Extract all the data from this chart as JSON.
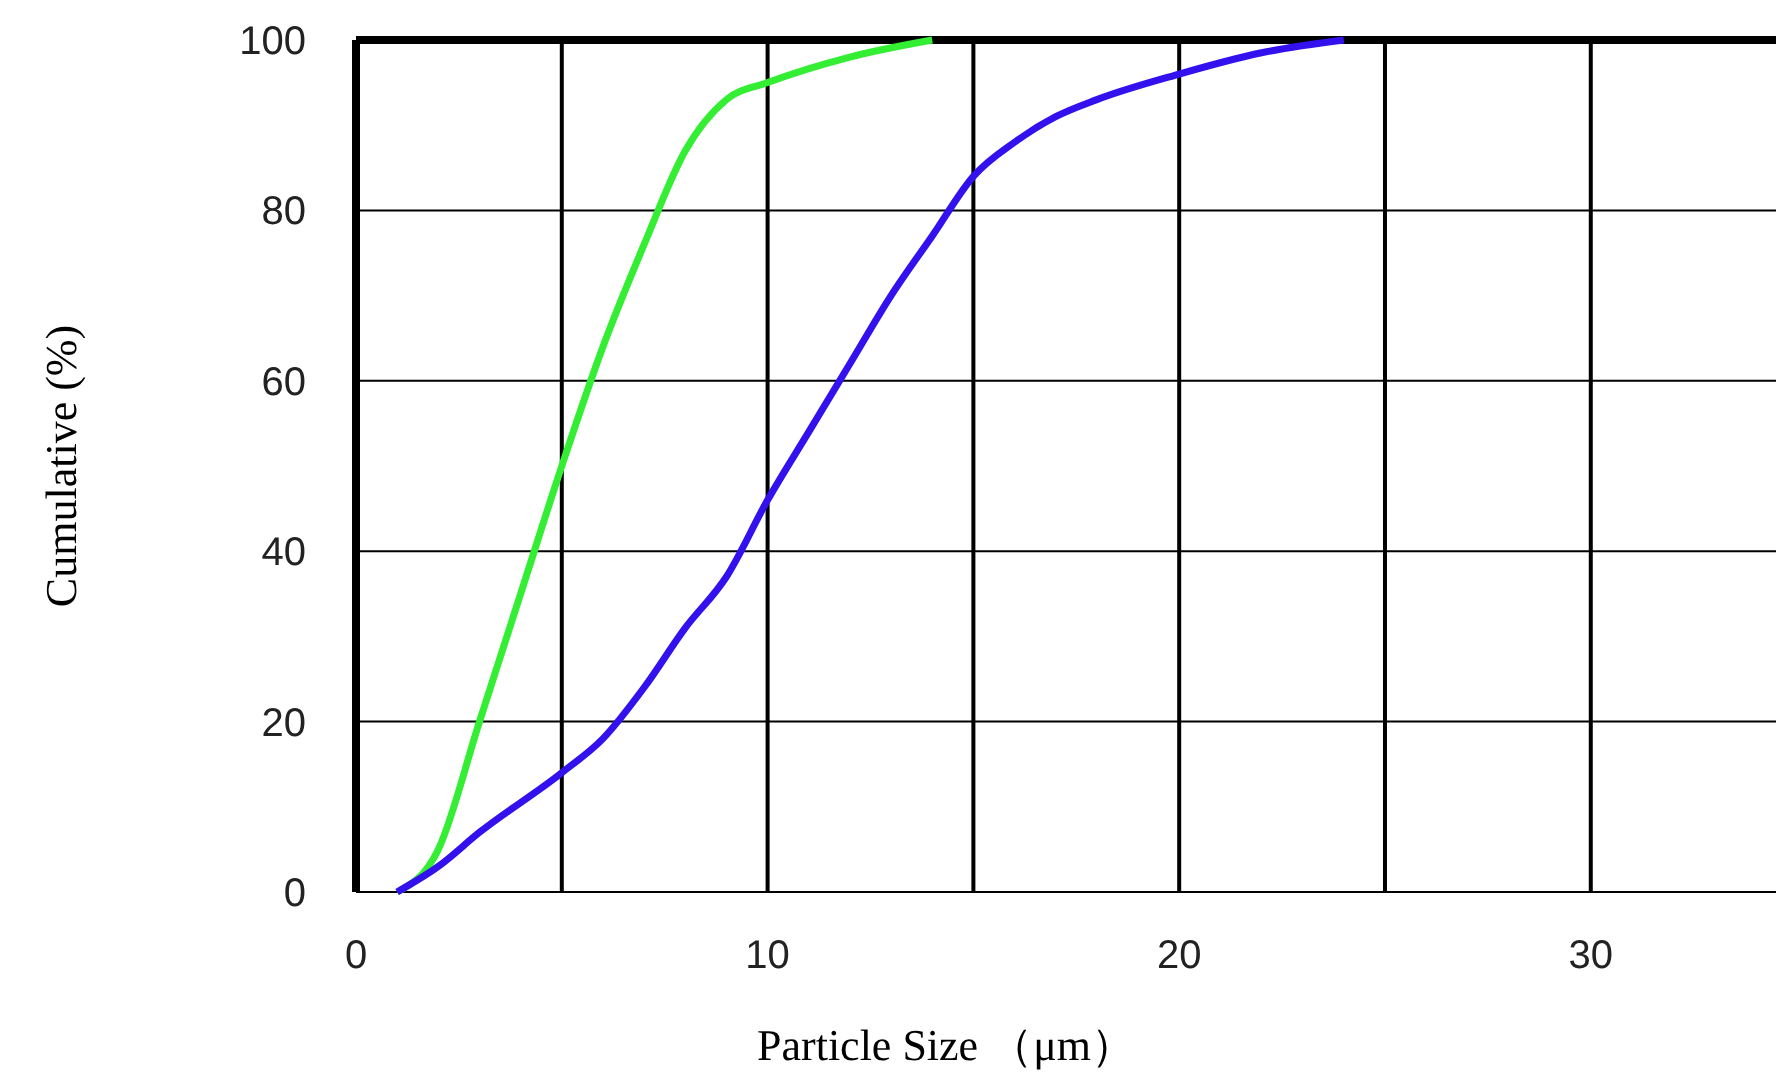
{
  "chart_data": {
    "type": "line",
    "xlabel": "Particle Size （μm）",
    "ylabel": "Cumulative (%)",
    "xlim": [
      0,
      34.5
    ],
    "ylim": [
      0,
      100
    ],
    "xticks": [
      0,
      {
        "value": 5,
        "label": null
      },
      10,
      {
        "value": 15,
        "label": null
      },
      20,
      {
        "value": 25,
        "label": null
      },
      30
    ],
    "yticks": [
      0,
      20,
      40,
      60,
      80,
      100
    ],
    "grid": true,
    "marker": "none",
    "line_style": "solid",
    "series": [
      {
        "color": "#33ee33",
        "x": [
          1,
          2,
          3,
          4,
          5,
          6,
          7,
          8,
          9,
          10,
          12,
          14
        ],
        "values": [
          0,
          5,
          20,
          35,
          50,
          64,
          76,
          87,
          93,
          95,
          98,
          100
        ]
      },
      {
        "color": "#3311ee",
        "x": [
          1,
          2,
          3,
          5,
          6,
          7,
          8,
          9,
          10,
          11,
          12,
          13,
          14,
          15,
          16,
          17,
          18,
          20,
          22,
          24
        ],
        "values": [
          0,
          3,
          7,
          14,
          18,
          24,
          31,
          37,
          46,
          54,
          62,
          70,
          77,
          84,
          88,
          91,
          93,
          96,
          98.5,
          100
        ]
      }
    ]
  }
}
